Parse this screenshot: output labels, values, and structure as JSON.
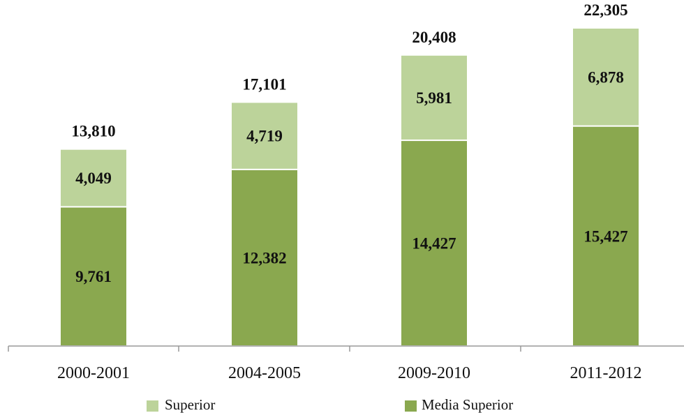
{
  "chart_data": {
    "type": "bar",
    "stacked": true,
    "categories": [
      "2000-2001",
      "2004-2005",
      "2009-2010",
      "2011-2012"
    ],
    "series": [
      {
        "name": "Media Superior",
        "values": [
          9761,
          12382,
          14427,
          15427
        ],
        "color": "#8aa84f"
      },
      {
        "name": "Superior",
        "values": [
          4049,
          4719,
          5981,
          6878
        ],
        "color": "#bcd39a"
      }
    ],
    "segment_labels": [
      [
        "9,761",
        "12,382",
        "14,427",
        "15,427"
      ],
      [
        "4,049",
        "4,719",
        "5,981",
        "6,878"
      ]
    ],
    "totals": [
      13810,
      17101,
      20408,
      22305
    ],
    "total_labels": [
      "13,810",
      "17,101",
      "20,408",
      "22,305"
    ],
    "legend": {
      "placement": "bottom",
      "items": [
        {
          "label": "Superior",
          "color": "#bcd39a"
        },
        {
          "label": "Media Superior",
          "color": "#8aa84f"
        }
      ]
    },
    "title": "",
    "xlabel": "",
    "ylabel": "",
    "ylim": [
      0,
      24000
    ],
    "grid": false
  }
}
